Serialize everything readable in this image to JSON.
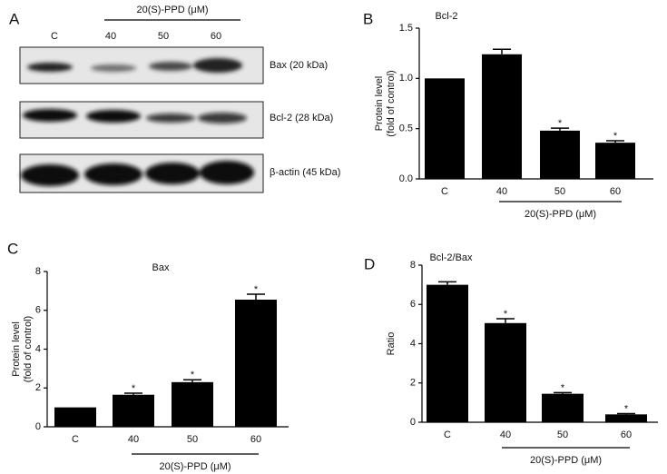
{
  "blot": {
    "panel": "A",
    "treatment": "20(S)-PPD (μM)",
    "lanes": [
      "C",
      "40",
      "50",
      "60"
    ],
    "proteins": [
      "Bax (20 kDa)",
      "Bcl-2 (28 kDa)",
      "β-actin (45 kDa)"
    ]
  },
  "chart_data": [
    {
      "type": "bar",
      "panel": "B",
      "title": "Bcl-2",
      "ylabel": [
        "Protein level",
        "(fold of control)"
      ],
      "xlabel": "20(S)-PPD (μM)",
      "categories": [
        "C",
        "40",
        "50",
        "60"
      ],
      "values": [
        1.0,
        1.24,
        0.48,
        0.36
      ],
      "errors": [
        0,
        0.05,
        0.025,
        0.02
      ],
      "annotations": [
        null,
        null,
        "*",
        "*"
      ],
      "color": "#000000",
      "ylim": [
        0,
        1.5
      ],
      "yticks": [
        {
          "value": 0,
          "label": "0.0"
        },
        {
          "value": 0.5,
          "label": "0.5"
        },
        {
          "value": 1,
          "label": "1.0"
        },
        {
          "value": 1.5,
          "label": "1.5"
        }
      ]
    },
    {
      "type": "bar",
      "panel": "C",
      "title": "Bax",
      "ylabel": [
        "Protein level",
        "(fold of control)"
      ],
      "xlabel": "20(S)-PPD (μM)",
      "categories": [
        "C",
        "40",
        "50",
        "60"
      ],
      "values": [
        1.0,
        1.65,
        2.3,
        6.55
      ],
      "errors": [
        0,
        0.08,
        0.12,
        0.28
      ],
      "annotations": [
        null,
        "*",
        "*",
        "*"
      ],
      "color": "#000000",
      "ylim": [
        0,
        8
      ],
      "yticks": [
        0,
        2,
        4,
        6,
        8
      ]
    },
    {
      "type": "bar",
      "panel": "D",
      "title": "Bcl-2/Bax",
      "ylabel": [
        "Ratio"
      ],
      "xlabel": "20(S)-PPD (μM)",
      "categories": [
        "C",
        "40",
        "50",
        "60"
      ],
      "values": [
        7.0,
        5.05,
        1.45,
        0.4
      ],
      "errors": [
        0.15,
        0.22,
        0.06,
        0.04
      ],
      "annotations": [
        null,
        "*",
        "*",
        "*"
      ],
      "color": "#000000",
      "ylim": [
        0,
        8
      ],
      "yticks": [
        0,
        2,
        4,
        6,
        8
      ]
    }
  ]
}
